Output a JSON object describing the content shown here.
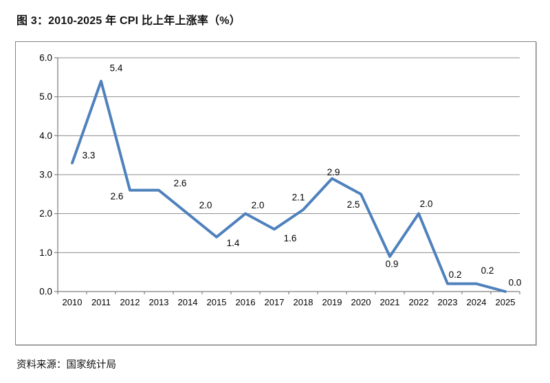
{
  "title": "图 3：2010-2025 年 CPI 比上年上涨率（%）",
  "source_note": "资料来源：国家统计局",
  "chart_data": {
    "type": "line",
    "title": "图 3：2010-2025 年 CPI 比上年上涨率（%）",
    "categories": [
      "2010",
      "2011",
      "2012",
      "2013",
      "2014",
      "2015",
      "2016",
      "2017",
      "2018",
      "2019",
      "2020",
      "2021",
      "2022",
      "2023",
      "2024",
      "2025"
    ],
    "values": [
      3.3,
      5.4,
      2.6,
      2.6,
      2.0,
      1.4,
      2.0,
      1.6,
      2.1,
      2.9,
      2.5,
      0.9,
      2.0,
      0.2,
      0.2,
      0.0
    ],
    "data_labels": [
      "3.3",
      "5.4",
      "2.6",
      "2.6",
      "2.0",
      "1.4",
      "2.0",
      "1.6",
      "2.1",
      "2.9",
      "2.5",
      "0.9",
      "2.0",
      "0.2",
      "0.2",
      "0.0"
    ],
    "xlabel": "",
    "ylabel": "",
    "ylim": [
      0,
      6
    ],
    "ytick_step": 1.0,
    "ytick_labels": [
      "0.0",
      "1.0",
      "2.0",
      "3.0",
      "4.0",
      "5.0",
      "6.0"
    ],
    "grid": true,
    "legend": "none",
    "colors": {
      "line": "#4F81BD",
      "grid": "#8C8C8C",
      "axis": "#7F7F7F",
      "text": "#000000",
      "chart_border": "#848484"
    }
  }
}
